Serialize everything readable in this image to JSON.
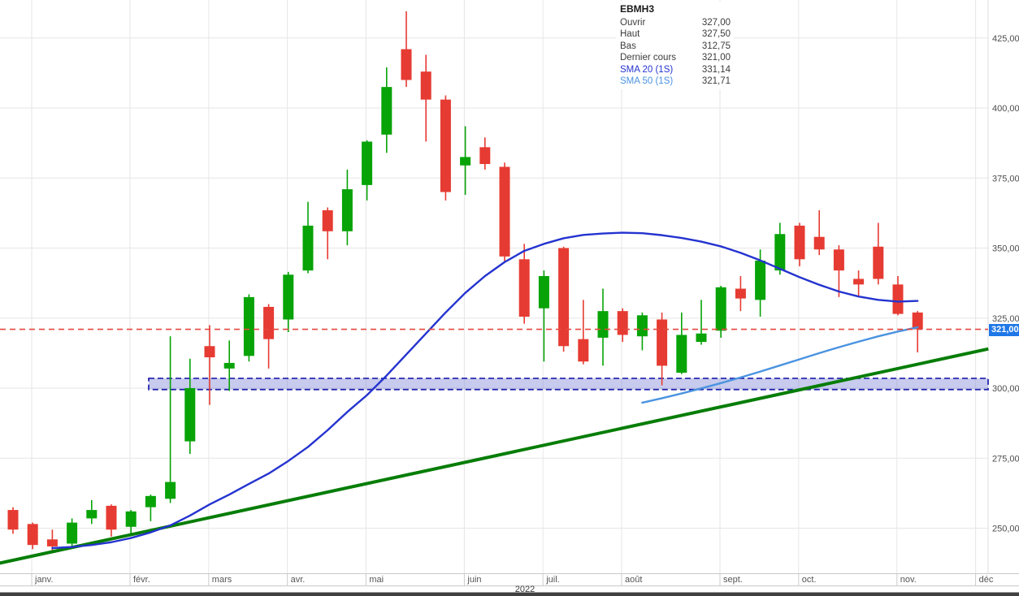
{
  "legend": {
    "symbol": "EBMH3",
    "rows": [
      {
        "label": "Ouvrir",
        "value": "327,00"
      },
      {
        "label": "Haut",
        "value": "327,50"
      },
      {
        "label": "Bas",
        "value": "312,75"
      },
      {
        "label": "Dernier cours",
        "value": "321,00"
      },
      {
        "label": "SMA 20 (1S)",
        "value": "331,14"
      },
      {
        "label": "SMA 50 (1S)",
        "value": "321,71"
      }
    ]
  },
  "chart_data": {
    "type": "candlestick",
    "symbol": "EBMH3",
    "timeframe_note": "1S",
    "year": "2022",
    "colors": {
      "up": "#07a307",
      "down": "#e63b32",
      "sma20": "#2433cf",
      "sma50": "#4a93e0",
      "trendline": "#067d06",
      "price_line": "#e5493f",
      "zone_fill": "rgba(125,132,212,0.42)",
      "zone_border": "#1d1dab",
      "grid": "#e6e6e6",
      "axis_text": "#4d4d4d",
      "price_tag_bg": "#1f78e8"
    },
    "y_ticks": [
      {
        "price": 425,
        "label": "425,00"
      },
      {
        "price": 400,
        "label": "400,00"
      },
      {
        "price": 375,
        "label": "375,00"
      },
      {
        "price": 350,
        "label": "350,00"
      },
      {
        "price": 325,
        "label": "325,00"
      },
      {
        "price": 300,
        "label": "300,00"
      },
      {
        "price": 275,
        "label": "275,00"
      },
      {
        "price": 250,
        "label": "250,00"
      }
    ],
    "months": [
      {
        "label": "janv.",
        "startWeek": 1
      },
      {
        "label": "févr.",
        "startWeek": 6
      },
      {
        "label": "mars",
        "startWeek": 10
      },
      {
        "label": "avr.",
        "startWeek": 14
      },
      {
        "label": "mai",
        "startWeek": 18
      },
      {
        "label": "juin",
        "startWeek": 23
      },
      {
        "label": "juil.",
        "startWeek": 27
      },
      {
        "label": "août",
        "startWeek": 31
      },
      {
        "label": "sept.",
        "startWeek": 36
      },
      {
        "label": "oct.",
        "startWeek": 40
      },
      {
        "label": "nov.",
        "startWeek": 45
      },
      {
        "label": "déc",
        "startWeek": 49
      }
    ],
    "price_line": {
      "price": 321,
      "label": "321,00"
    },
    "support_zone": {
      "startWeek": 6.9,
      "priceTop": 303.5,
      "priceBottom": 299.5
    },
    "trendline": {
      "from": {
        "week": -0.7,
        "price": 237.5
      },
      "to": {
        "week": 49.6,
        "price": 314
      }
    },
    "sma20": {
      "name": "SMA 20 (1S)",
      "startWeek": 2,
      "last_value": 331.14,
      "values": [
        242.9,
        243.3,
        244,
        245,
        246.5,
        248.5,
        251,
        254.5,
        258.5,
        262,
        265.8,
        269.5,
        274,
        279,
        285,
        291.5,
        297.5,
        304.5,
        312,
        319.5,
        327,
        334,
        340,
        345,
        349,
        351.5,
        353.5,
        354.7,
        355.2,
        355.5,
        355.3,
        354.6,
        353.6,
        352.3,
        350.6,
        348.3,
        345.6,
        342.6,
        339.6,
        336.9,
        334.5,
        332.7,
        331.5,
        330.9,
        331.14
      ]
    },
    "sma50": {
      "name": "SMA 50 (1S)",
      "startWeek": 32,
      "last_value": 321.71,
      "values": [
        294.8,
        296.4,
        298.1,
        299.9,
        301.8,
        303.8,
        305.9,
        308.1,
        310.3,
        312.5,
        314.6,
        316.6,
        318.5,
        320.2,
        321.71
      ]
    },
    "candles_format": [
      "open",
      "high",
      "low",
      "close"
    ],
    "candles": [
      [
        256.5,
        257.5,
        248,
        249.5
      ],
      [
        251.5,
        252,
        242.5,
        244
      ],
      [
        246,
        249.5,
        242,
        243.5
      ],
      [
        244.5,
        253.5,
        243,
        252
      ],
      [
        253.5,
        260,
        251.5,
        256.5
      ],
      [
        258,
        258.5,
        247,
        249.5
      ],
      [
        250.5,
        256.5,
        247.5,
        256
      ],
      [
        257.5,
        262,
        252.5,
        261.5
      ],
      [
        260.5,
        318.5,
        259,
        266.5
      ],
      [
        281,
        310.5,
        276.5,
        300
      ],
      [
        315,
        322.5,
        294,
        311
      ],
      [
        307,
        317,
        299,
        309
      ],
      [
        311.5,
        333.5,
        309.5,
        332.5
      ],
      [
        329,
        330,
        307,
        317.5
      ],
      [
        324.5,
        341.5,
        320,
        340.5
      ],
      [
        342,
        366.5,
        341,
        358
      ],
      [
        363.5,
        364.5,
        346,
        356
      ],
      [
        356,
        378,
        351,
        371
      ],
      [
        372.5,
        388.5,
        367,
        388
      ],
      [
        390.5,
        414.5,
        384,
        407.5
      ],
      [
        421,
        434.5,
        407.5,
        410
      ],
      [
        413,
        419,
        388,
        403
      ],
      [
        403,
        404.5,
        367,
        370
      ],
      [
        379.5,
        393.5,
        369,
        382.5
      ],
      [
        386,
        389.5,
        378,
        380
      ],
      [
        379,
        380.5,
        345,
        347
      ],
      [
        346,
        351.5,
        323,
        325.5
      ],
      [
        328.5,
        342,
        309.5,
        340
      ],
      [
        350,
        350.5,
        313,
        315
      ],
      [
        317.5,
        331.5,
        308.5,
        309.5
      ],
      [
        318,
        335.5,
        308,
        327.5
      ],
      [
        327.5,
        328.5,
        316.5,
        319
      ],
      [
        318.5,
        327,
        313.5,
        326
      ],
      [
        324.5,
        327,
        301,
        308
      ],
      [
        305.5,
        327,
        305,
        319
      ],
      [
        316.5,
        331.5,
        315.5,
        319.5
      ],
      [
        320.5,
        336.5,
        318,
        336
      ],
      [
        335.5,
        340,
        327.5,
        332
      ],
      [
        331.5,
        349.5,
        325.5,
        345.5
      ],
      [
        342,
        359,
        340.5,
        355
      ],
      [
        358,
        359,
        343.5,
        346
      ],
      [
        354,
        363.5,
        347.5,
        349.5
      ],
      [
        349.5,
        351,
        332.5,
        342
      ],
      [
        339,
        342,
        333,
        337
      ],
      [
        350.5,
        359,
        337,
        339
      ],
      [
        337,
        340,
        326,
        326.5
      ],
      [
        327,
        327.5,
        312.75,
        321
      ]
    ]
  }
}
